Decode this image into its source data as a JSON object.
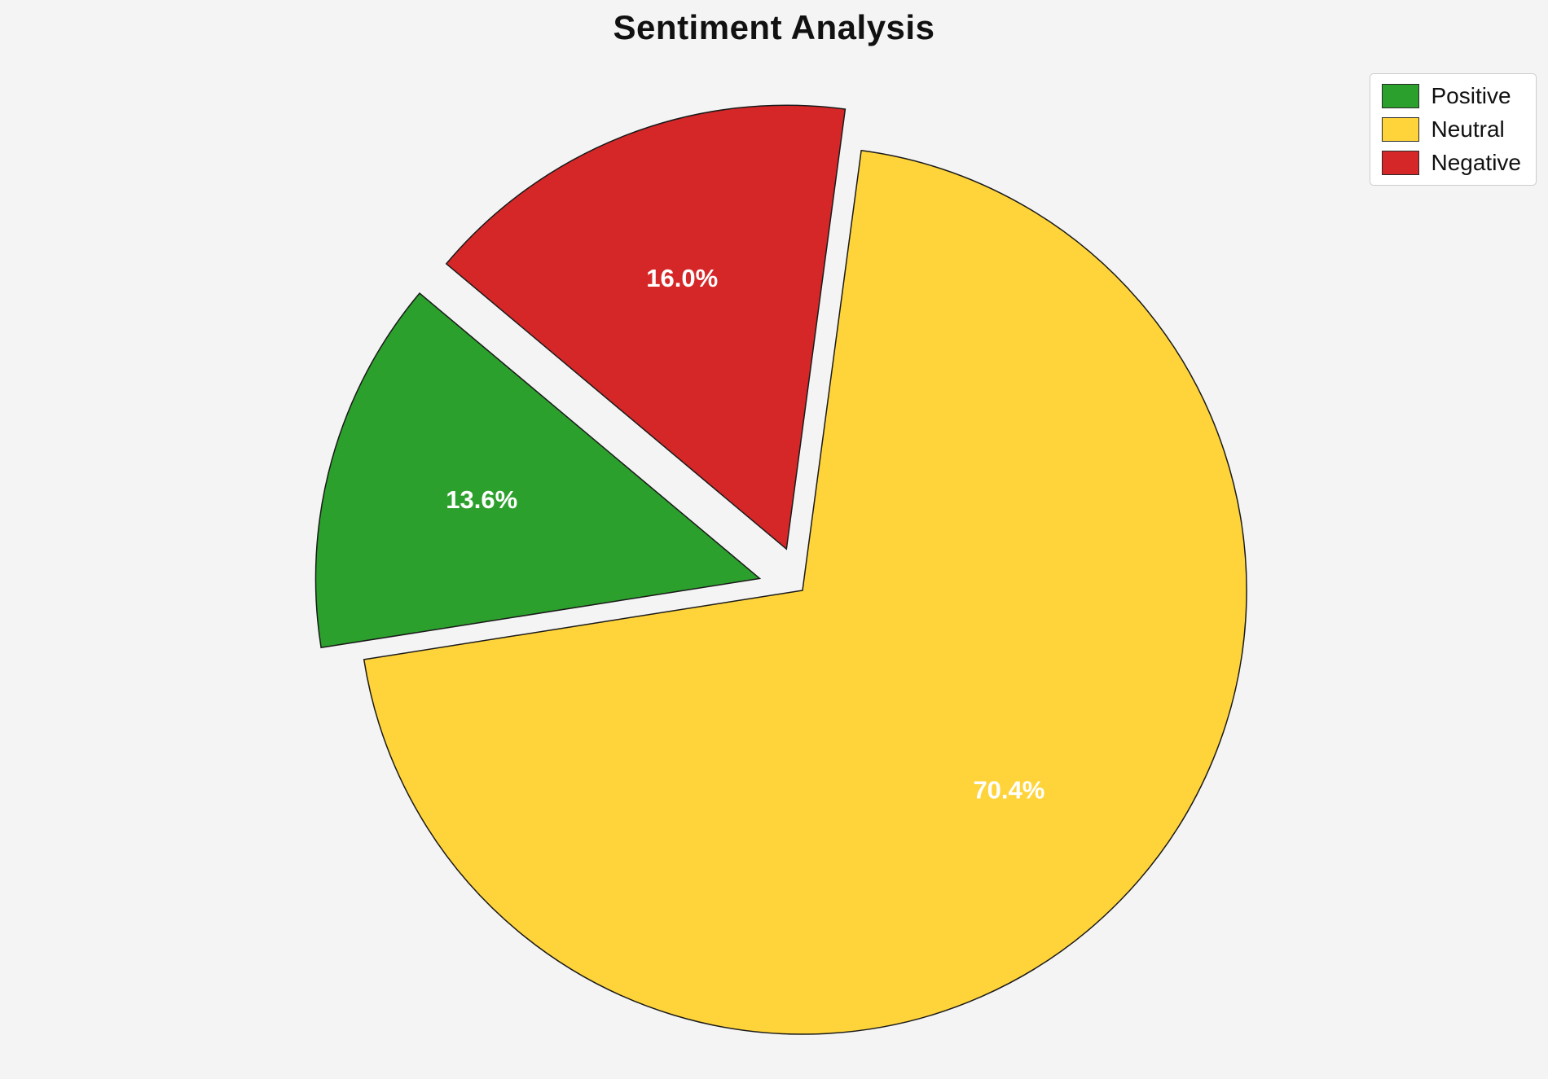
{
  "page": {
    "background_color": "#f4f4f4"
  },
  "chart_data": {
    "type": "pie",
    "title": "Sentiment Analysis",
    "slices": [
      {
        "label": "Positive",
        "value": 13.6,
        "display_pct": "13.6%",
        "color": "#2ca02c",
        "explode": 0.1
      },
      {
        "label": "Neutral",
        "value": 70.4,
        "display_pct": "70.4%",
        "color": "#ffd43b",
        "explode": 0
      },
      {
        "label": "Negative",
        "value": 16.0,
        "display_pct": "16.0%",
        "color": "#d62728",
        "explode": 0.1
      }
    ],
    "start_angle": 140,
    "direction": "counterclockwise",
    "label_color": "#ffffff",
    "edge_color": "#1a1a1a",
    "legend": {
      "position": "upper right",
      "entries": [
        "Positive",
        "Neutral",
        "Negative"
      ]
    }
  }
}
